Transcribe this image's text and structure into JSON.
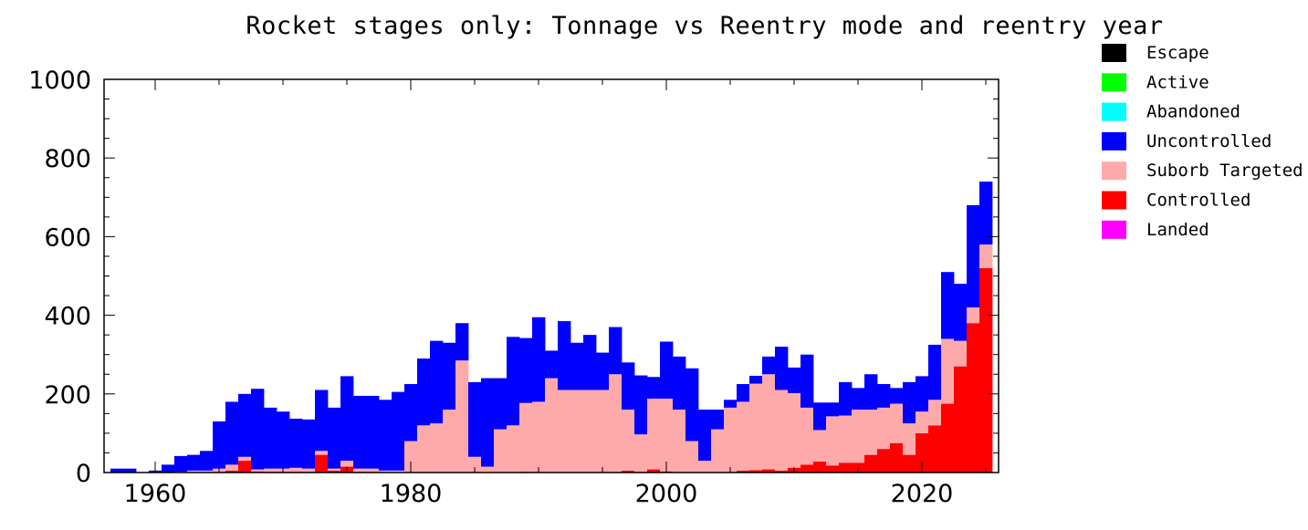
{
  "chart_data": {
    "type": "bar",
    "stacked": true,
    "title": "Rocket stages only: Tonnage vs Reentry mode and reentry year",
    "xlabel": "",
    "ylabel": "",
    "xlim": [
      1956,
      2026
    ],
    "ylim": [
      0,
      1000
    ],
    "x_ticks": [
      1960,
      1980,
      2000,
      2020
    ],
    "y_ticks": [
      0,
      200,
      400,
      600,
      800,
      1000
    ],
    "grid": false,
    "legend_position": "right, outside plot",
    "x": [
      1957,
      1958,
      1959,
      1960,
      1961,
      1962,
      1963,
      1964,
      1965,
      1966,
      1967,
      1968,
      1969,
      1970,
      1971,
      1972,
      1973,
      1974,
      1975,
      1976,
      1977,
      1978,
      1979,
      1980,
      1981,
      1982,
      1983,
      1984,
      1985,
      1986,
      1987,
      1988,
      1989,
      1990,
      1991,
      1992,
      1993,
      1994,
      1995,
      1996,
      1997,
      1998,
      1999,
      2000,
      2001,
      2002,
      2003,
      2004,
      2005,
      2006,
      2007,
      2008,
      2009,
      2010,
      2011,
      2012,
      2013,
      2014,
      2015,
      2016,
      2017,
      2018,
      2019,
      2020,
      2021,
      2022,
      2023,
      2024,
      2025
    ],
    "series": [
      {
        "name": "Escape",
        "color": "#000000",
        "values": [
          0,
          0,
          0,
          0,
          0,
          0,
          0,
          0,
          0,
          0,
          0,
          0,
          0,
          0,
          0,
          0,
          0,
          0,
          0,
          0,
          0,
          0,
          0,
          0,
          0,
          0,
          0,
          0,
          0,
          0,
          0,
          0,
          0,
          0,
          0,
          0,
          0,
          0,
          0,
          0,
          0,
          0,
          0,
          0,
          0,
          0,
          0,
          0,
          0,
          0,
          0,
          0,
          0,
          0,
          0,
          0,
          0,
          0,
          0,
          0,
          0,
          0,
          0,
          0,
          0,
          0,
          0,
          0,
          0
        ]
      },
      {
        "name": "Active",
        "color": "#00ff00",
        "values": [
          0,
          0,
          0,
          0,
          0,
          0,
          0,
          0,
          0,
          0,
          0,
          0,
          0,
          0,
          0,
          0,
          0,
          0,
          0,
          0,
          0,
          0,
          0,
          0,
          0,
          0,
          0,
          0,
          0,
          0,
          0,
          0,
          0,
          0,
          0,
          0,
          0,
          0,
          0,
          0,
          0,
          0,
          0,
          0,
          0,
          0,
          0,
          0,
          0,
          0,
          0,
          0,
          0,
          0,
          0,
          0,
          0,
          0,
          0,
          0,
          0,
          0,
          0,
          0,
          0,
          0,
          0,
          0,
          0
        ]
      },
      {
        "name": "Abandoned",
        "color": "#00ffff",
        "values": [
          0,
          0,
          0,
          0,
          0,
          0,
          0,
          0,
          0,
          0,
          0,
          0,
          0,
          0,
          0,
          0,
          0,
          0,
          0,
          0,
          0,
          0,
          0,
          0,
          0,
          0,
          0,
          0,
          0,
          0,
          0,
          0,
          0,
          0,
          0,
          0,
          0,
          0,
          0,
          0,
          0,
          0,
          0,
          0,
          0,
          0,
          0,
          0,
          0,
          0,
          0,
          0,
          0,
          0,
          0,
          0,
          0,
          0,
          0,
          0,
          0,
          0,
          0,
          0,
          0,
          0,
          0,
          0,
          0
        ]
      },
      {
        "name": "Landed",
        "color": "#ff00ff",
        "values": [
          0,
          0,
          0,
          0,
          0,
          0,
          0,
          0,
          0,
          0,
          0,
          0,
          0,
          0,
          0,
          0,
          0,
          0,
          0,
          0,
          0,
          0,
          0,
          0,
          0,
          0,
          0,
          0,
          0,
          0,
          0,
          0,
          0,
          0,
          0,
          0,
          0,
          0,
          0,
          0,
          0,
          0,
          0,
          0,
          0,
          0,
          0,
          0,
          0,
          0,
          0,
          0,
          0,
          0,
          0,
          0,
          0,
          0,
          0,
          0,
          0,
          0,
          0,
          0,
          0,
          0,
          0,
          0,
          0
        ]
      },
      {
        "name": "Controlled",
        "color": "#ff0000",
        "values": [
          0,
          0,
          0,
          0,
          0,
          0,
          0,
          0,
          2,
          5,
          30,
          3,
          2,
          2,
          2,
          2,
          45,
          5,
          15,
          2,
          2,
          0,
          0,
          0,
          0,
          0,
          0,
          0,
          0,
          0,
          0,
          0,
          2,
          0,
          0,
          0,
          0,
          0,
          0,
          0,
          5,
          2,
          8,
          3,
          0,
          0,
          0,
          0,
          0,
          5,
          6,
          8,
          5,
          12,
          20,
          28,
          18,
          25,
          25,
          45,
          60,
          75,
          45,
          100,
          120,
          175,
          270,
          380,
          520
        ]
      },
      {
        "name": "Suborb Targeted",
        "color": "#ffaaaa",
        "values": [
          0,
          0,
          0,
          0,
          0,
          2,
          5,
          5,
          8,
          15,
          10,
          5,
          8,
          8,
          10,
          8,
          10,
          5,
          15,
          8,
          8,
          5,
          5,
          80,
          120,
          125,
          160,
          285,
          40,
          15,
          110,
          120,
          175,
          180,
          240,
          210,
          210,
          210,
          210,
          250,
          155,
          95,
          180,
          185,
          160,
          80,
          30,
          110,
          165,
          175,
          220,
          242,
          205,
          190,
          145,
          80,
          125,
          120,
          135,
          115,
          105,
          100,
          80,
          55,
          65,
          165,
          65,
          40,
          60
        ]
      },
      {
        "name": "Uncontrolled",
        "color": "#0000ff",
        "values": [
          10,
          10,
          0,
          5,
          20,
          40,
          40,
          50,
          120,
          160,
          160,
          205,
          155,
          145,
          125,
          125,
          155,
          155,
          215,
          185,
          185,
          180,
          200,
          145,
          170,
          210,
          170,
          95,
          190,
          225,
          130,
          225,
          165,
          215,
          70,
          175,
          120,
          140,
          95,
          120,
          120,
          150,
          55,
          145,
          135,
          185,
          130,
          50,
          20,
          45,
          20,
          45,
          110,
          65,
          135,
          70,
          35,
          85,
          55,
          90,
          60,
          40,
          105,
          90,
          140,
          170,
          145,
          260,
          160
        ]
      }
    ]
  },
  "legend": {
    "items": [
      {
        "label": "Escape",
        "color": "#000000"
      },
      {
        "label": "Active",
        "color": "#00ff00"
      },
      {
        "label": "Abandoned",
        "color": "#00ffff"
      },
      {
        "label": "Uncontrolled",
        "color": "#0000ff"
      },
      {
        "label": "Suborb Targeted",
        "color": "#ffaaaa"
      },
      {
        "label": "Controlled",
        "color": "#ff0000"
      },
      {
        "label": "Landed",
        "color": "#ff00ff"
      }
    ]
  }
}
